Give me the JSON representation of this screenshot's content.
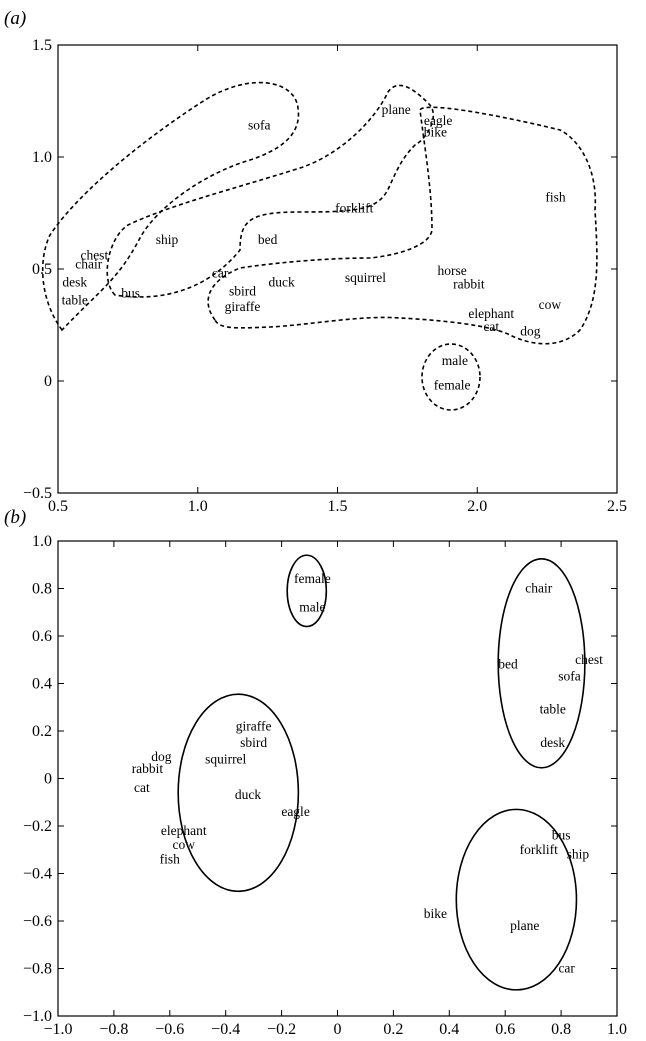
{
  "chart_data": [
    {
      "type": "scatter",
      "panel_label": "(a)",
      "xlim": [
        0.5,
        2.5
      ],
      "ylim": [
        -0.5,
        1.5
      ],
      "x_ticks": [
        "0.5",
        "1.0",
        "1.5",
        "2.0",
        "2.5"
      ],
      "y_ticks": [
        "−0.5",
        "0",
        "0.5",
        "1.0",
        "1.5"
      ],
      "grid": false,
      "points": [
        {
          "label": "sofa",
          "x": 1.22,
          "y": 1.14
        },
        {
          "label": "plane",
          "x": 1.71,
          "y": 1.21
        },
        {
          "label": "eagle",
          "x": 1.86,
          "y": 1.16
        },
        {
          "label": "bike",
          "x": 1.85,
          "y": 1.11
        },
        {
          "label": "fish",
          "x": 2.28,
          "y": 0.82
        },
        {
          "label": "forklift",
          "x": 1.56,
          "y": 0.77
        },
        {
          "label": "ship",
          "x": 0.89,
          "y": 0.63
        },
        {
          "label": "bed",
          "x": 1.25,
          "y": 0.63
        },
        {
          "label": "chest",
          "x": 0.63,
          "y": 0.56
        },
        {
          "label": "chair",
          "x": 0.61,
          "y": 0.52
        },
        {
          "label": "desk",
          "x": 0.56,
          "y": 0.44
        },
        {
          "label": "table",
          "x": 0.56,
          "y": 0.36
        },
        {
          "label": "bus",
          "x": 0.76,
          "y": 0.39
        },
        {
          "label": "car",
          "x": 1.08,
          "y": 0.48
        },
        {
          "label": "sbird",
          "x": 1.16,
          "y": 0.4
        },
        {
          "label": "duck",
          "x": 1.3,
          "y": 0.44
        },
        {
          "label": "squirrel",
          "x": 1.6,
          "y": 0.46
        },
        {
          "label": "giraffe",
          "x": 1.16,
          "y": 0.33
        },
        {
          "label": "horse",
          "x": 1.91,
          "y": 0.49
        },
        {
          "label": "rabbit",
          "x": 1.97,
          "y": 0.43
        },
        {
          "label": "elephant",
          "x": 2.05,
          "y": 0.3
        },
        {
          "label": "cat",
          "x": 2.05,
          "y": 0.24
        },
        {
          "label": "cow",
          "x": 2.26,
          "y": 0.34
        },
        {
          "label": "dog",
          "x": 2.19,
          "y": 0.22
        },
        {
          "label": "male",
          "x": 1.92,
          "y": 0.09
        },
        {
          "label": "female",
          "x": 1.91,
          "y": -0.02
        }
      ],
      "clusters": [
        {
          "members": [
            "chest",
            "chair",
            "desk",
            "table",
            "sofa"
          ],
          "outline": "dashed"
        },
        {
          "members": [
            "ship",
            "bus",
            "plane",
            "eagle",
            "bike",
            "forklift",
            "bed",
            "car"
          ],
          "outline": "dashed"
        },
        {
          "members": [
            "fish",
            "sbird",
            "duck",
            "squirrel",
            "giraffe",
            "horse",
            "rabbit",
            "elephant",
            "cat",
            "cow",
            "dog"
          ],
          "outline": "dashed"
        },
        {
          "members": [
            "male",
            "female"
          ],
          "outline": "dashed"
        }
      ]
    },
    {
      "type": "scatter",
      "panel_label": "(b)",
      "xlim": [
        -1.0,
        1.0
      ],
      "ylim": [
        -1.0,
        1.0
      ],
      "x_ticks": [
        "−1.0",
        "−0.8",
        "−0.6",
        "−0.4",
        "−0.2",
        "0",
        "0.2",
        "0.4",
        "0.6",
        "0.8",
        "1.0"
      ],
      "y_ticks": [
        "−1.0",
        "−0.8",
        "−0.6",
        "−0.4",
        "−0.2",
        "0",
        "0.2",
        "0.4",
        "0.6",
        "0.8",
        "1.0"
      ],
      "grid": false,
      "points": [
        {
          "label": "female",
          "x": -0.09,
          "y": 0.84
        },
        {
          "label": "male",
          "x": -0.09,
          "y": 0.72
        },
        {
          "label": "chair",
          "x": 0.72,
          "y": 0.8
        },
        {
          "label": "bed",
          "x": 0.61,
          "y": 0.48
        },
        {
          "label": "chest",
          "x": 0.9,
          "y": 0.5
        },
        {
          "label": "sofa",
          "x": 0.83,
          "y": 0.43
        },
        {
          "label": "table",
          "x": 0.77,
          "y": 0.29
        },
        {
          "label": "desk",
          "x": 0.77,
          "y": 0.15
        },
        {
          "label": "giraffe",
          "x": -0.3,
          "y": 0.22
        },
        {
          "label": "sbird",
          "x": -0.3,
          "y": 0.15
        },
        {
          "label": "dog",
          "x": -0.63,
          "y": 0.09
        },
        {
          "label": "squirrel",
          "x": -0.4,
          "y": 0.08
        },
        {
          "label": "rabbit",
          "x": -0.68,
          "y": 0.04
        },
        {
          "label": "cat",
          "x": -0.7,
          "y": -0.04
        },
        {
          "label": "duck",
          "x": -0.32,
          "y": -0.07
        },
        {
          "label": "eagle",
          "x": -0.15,
          "y": -0.14
        },
        {
          "label": "elephant",
          "x": -0.55,
          "y": -0.22
        },
        {
          "label": "cow",
          "x": -0.55,
          "y": -0.28
        },
        {
          "label": "fish",
          "x": -0.6,
          "y": -0.34
        },
        {
          "label": "bus",
          "x": 0.8,
          "y": -0.24
        },
        {
          "label": "forklift",
          "x": 0.72,
          "y": -0.3
        },
        {
          "label": "ship",
          "x": 0.86,
          "y": -0.32
        },
        {
          "label": "bike",
          "x": 0.35,
          "y": -0.57
        },
        {
          "label": "plane",
          "x": 0.67,
          "y": -0.62
        },
        {
          "label": "car",
          "x": 0.82,
          "y": -0.8
        }
      ],
      "clusters": [
        {
          "members": [
            "female",
            "male"
          ],
          "outline": "solid",
          "cx": -0.11,
          "cy": 0.79,
          "rx": 0.07,
          "ry": 0.15
        },
        {
          "members": [
            "chair",
            "bed",
            "chest",
            "sofa",
            "table",
            "desk"
          ],
          "outline": "solid",
          "cx": 0.73,
          "cy": 0.485,
          "rx": 0.155,
          "ry": 0.44
        },
        {
          "members": [
            "giraffe",
            "sbird",
            "dog",
            "squirrel",
            "rabbit",
            "cat",
            "duck",
            "eagle",
            "elephant",
            "cow",
            "fish"
          ],
          "outline": "solid",
          "cx": -0.355,
          "cy": -0.06,
          "rx": 0.215,
          "ry": 0.415
        },
        {
          "members": [
            "bus",
            "forklift",
            "ship",
            "bike",
            "plane",
            "car"
          ],
          "outline": "solid",
          "cx": 0.64,
          "cy": -0.51,
          "rx": 0.215,
          "ry": 0.38
        }
      ]
    }
  ]
}
